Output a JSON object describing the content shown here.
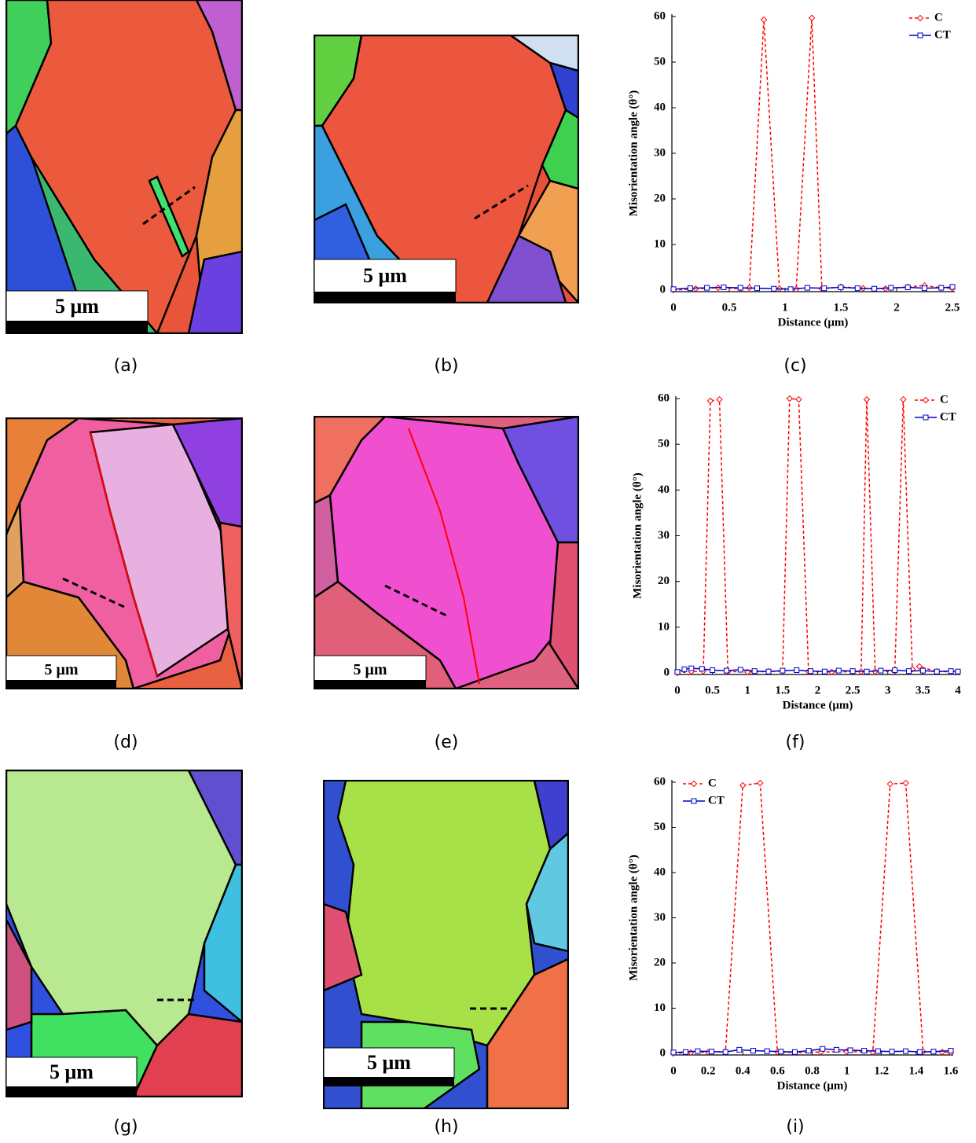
{
  "figure": {
    "labels": [
      "(a)",
      "(b)",
      "(c)",
      "(d)",
      "(e)",
      "(f)",
      "(g)",
      "(h)",
      "(i)"
    ],
    "scale_bar": "5 μm"
  },
  "chart_data": [
    {
      "type": "line",
      "xlabel": "Distance (μm)",
      "ylabel": "Misorientation angle (θ°)",
      "legend": "top-right",
      "xlim": [
        0,
        2.5
      ],
      "xticks": [
        0,
        0.5,
        1,
        1.5,
        2,
        2.5
      ],
      "ylim": [
        0,
        60
      ],
      "yticks": [
        0,
        10,
        20,
        30,
        40,
        50,
        60
      ],
      "series": [
        {
          "name": "C",
          "color": "#ff0000",
          "marker": "diamond",
          "x": [
            0,
            0.2,
            0.4,
            0.6,
            0.68,
            0.81,
            0.95,
            1.1,
            1.24,
            1.33,
            1.5,
            1.7,
            1.9,
            2.1,
            2.25,
            2.4,
            2.5
          ],
          "values": [
            0,
            0.3,
            0.5,
            0.3,
            0.5,
            59.3,
            0.3,
            0.2,
            59.7,
            0.3,
            0.7,
            0.4,
            0.3,
            0.7,
            1,
            0.5,
            0.4
          ]
        },
        {
          "name": "CT",
          "color": "#0000cc",
          "marker": "square",
          "x": [
            0,
            0.15,
            0.3,
            0.45,
            0.6,
            0.75,
            0.9,
            1.05,
            1.2,
            1.35,
            1.5,
            1.65,
            1.8,
            1.95,
            2.1,
            2.25,
            2.4,
            2.5
          ],
          "values": [
            0.2,
            0.4,
            0.5,
            0.6,
            0.5,
            0.4,
            0.3,
            0.2,
            0.5,
            0.4,
            0.6,
            0.4,
            0.3,
            0.5,
            0.6,
            0.4,
            0.5,
            0.7
          ]
        }
      ]
    },
    {
      "type": "line",
      "xlabel": "Distance (μm)",
      "ylabel": "Misorientation angle (θ°)",
      "legend": "top-right",
      "xlim": [
        0,
        4
      ],
      "xticks": [
        0,
        0.5,
        1,
        1.5,
        2,
        2.5,
        3,
        3.5,
        4
      ],
      "ylim": [
        0,
        60
      ],
      "yticks": [
        0,
        10,
        20,
        30,
        40,
        50,
        60
      ],
      "series": [
        {
          "name": "C",
          "color": "#ff0000",
          "marker": "diamond",
          "x": [
            0,
            0.2,
            0.37,
            0.47,
            0.6,
            0.72,
            1,
            1.3,
            1.5,
            1.6,
            1.73,
            1.87,
            2.2,
            2.62,
            2.7,
            2.82,
            3.1,
            3.22,
            3.35,
            3.45,
            3.7,
            4
          ],
          "values": [
            0,
            0.3,
            0.4,
            59.5,
            59.8,
            0.3,
            0.2,
            0.3,
            0.4,
            60,
            59.8,
            0.3,
            0.2,
            0.3,
            59.8,
            0.3,
            0.4,
            59.8,
            0.8,
            1.4,
            0.3,
            0.2
          ]
        },
        {
          "name": "CT",
          "color": "#0000cc",
          "marker": "square",
          "x": [
            0,
            0.1,
            0.2,
            0.35,
            0.5,
            0.7,
            0.9,
            1.1,
            1.3,
            1.5,
            1.7,
            1.9,
            2.1,
            2.3,
            2.5,
            2.7,
            2.9,
            3.1,
            3.3,
            3.5,
            3.7,
            3.9,
            4
          ],
          "values": [
            0.2,
            0.8,
            1,
            0.9,
            0.6,
            0.5,
            0.7,
            0.4,
            0.3,
            0.5,
            0.6,
            0.4,
            0.3,
            0.5,
            0.4,
            0.3,
            0.5,
            0.6,
            0.4,
            0.5,
            0.3,
            0.4,
            0.3
          ]
        }
      ]
    },
    {
      "type": "line",
      "xlabel": "Distance (μm)",
      "ylabel": "Misorientation angle (θ°)",
      "legend": "top-left",
      "xlim": [
        0,
        1.6
      ],
      "xticks": [
        0,
        0.2,
        0.4,
        0.6,
        0.8,
        1,
        1.2,
        1.4,
        1.6
      ],
      "ylim": [
        0,
        60
      ],
      "yticks": [
        0,
        10,
        20,
        30,
        40,
        50,
        60
      ],
      "series": [
        {
          "name": "C",
          "color": "#ff0000",
          "marker": "diamond",
          "x": [
            0,
            0.1,
            0.2,
            0.3,
            0.4,
            0.5,
            0.6,
            0.7,
            0.85,
            1,
            1.15,
            1.25,
            1.34,
            1.44,
            1.55,
            1.6
          ],
          "values": [
            0,
            0.2,
            0.3,
            0.4,
            59.3,
            59.8,
            0.3,
            0.2,
            0.3,
            0.4,
            0.3,
            59.6,
            59.8,
            0.4,
            0.3,
            0.2
          ]
        },
        {
          "name": "CT",
          "color": "#0000cc",
          "marker": "square",
          "x": [
            0,
            0.07,
            0.14,
            0.22,
            0.3,
            0.38,
            0.46,
            0.54,
            0.62,
            0.7,
            0.78,
            0.86,
            0.94,
            1.02,
            1.1,
            1.18,
            1.26,
            1.34,
            1.42,
            1.5,
            1.6
          ],
          "values": [
            0.2,
            0.3,
            0.5,
            0.4,
            0.3,
            0.8,
            0.6,
            0.5,
            0.4,
            0.3,
            0.6,
            1,
            0.8,
            0.7,
            0.6,
            0.5,
            0.4,
            0.5,
            0.3,
            0.4,
            0.6
          ]
        }
      ]
    }
  ]
}
